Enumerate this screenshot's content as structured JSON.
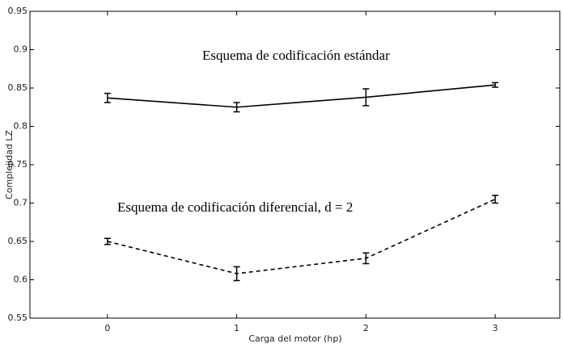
{
  "chart_data": {
    "type": "line",
    "x_label": "Carga del motor (hp)",
    "y_label": "Complejidad LZ",
    "x": [
      0,
      1,
      2,
      3
    ],
    "series": [
      {
        "color": "#000000",
        "linestyle": "solid",
        "values": [
          0.837,
          0.825,
          0.838,
          0.854
        ],
        "errors": [
          0.006,
          0.006,
          0.011,
          0.003
        ]
      },
      {
        "color": "#000000",
        "linestyle": "dashed",
        "values": [
          0.65,
          0.608,
          0.628,
          0.705
        ],
        "errors": [
          0.004,
          0.009,
          0.007,
          0.005
        ]
      }
    ],
    "annotations": [
      "Esquema de codificación estándar",
      "Esquema de codificación diferencial, d = 2"
    ],
    "xlim": [
      -0.6,
      3.5
    ],
    "ylim": [
      0.55,
      0.95
    ],
    "xticks": [
      0,
      1,
      2,
      3
    ],
    "yticks": [
      0.55,
      0.6,
      0.65,
      0.7,
      0.75,
      0.8,
      0.85,
      0.9,
      0.95
    ],
    "grid": false
  }
}
